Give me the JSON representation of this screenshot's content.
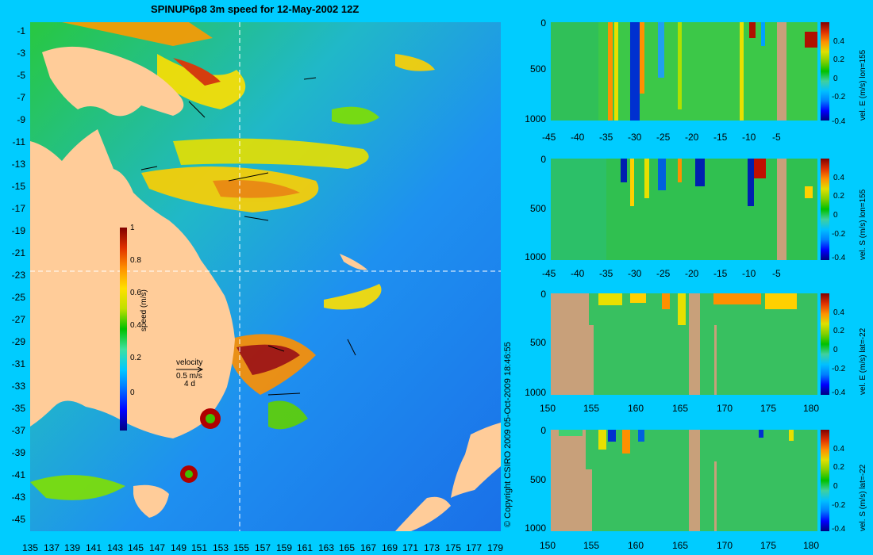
{
  "title": "SPINUP6p8 3m speed for 12-May-2002 12Z",
  "copyright": "© Copyright CSIRO 2009 05-Oct-2009 18:46:55",
  "map": {
    "lat_ticks": [
      "-1",
      "-3",
      "-5",
      "-7",
      "-9",
      "-11",
      "-13",
      "-15",
      "-17",
      "-19",
      "-21",
      "-23",
      "-25",
      "-27",
      "-29",
      "-31",
      "-33",
      "-35",
      "-37",
      "-39",
      "-41",
      "-43",
      "-45"
    ],
    "lon_ticks": [
      "135",
      "137",
      "139",
      "141",
      "143",
      "145",
      "147",
      "149",
      "151",
      "153",
      "155",
      "157",
      "159",
      "161",
      "163",
      "165",
      "167",
      "169",
      "171",
      "173",
      "175",
      "177",
      "179"
    ],
    "colorbar": {
      "title": "speed (m/s)",
      "ticks": [
        "1",
        "0.8",
        "0.6",
        "0.4",
        "0.2",
        "0"
      ]
    },
    "velocity_legend": {
      "title": "velocity",
      "speed": "0.5 m/s",
      "period": "4 d"
    },
    "colors": {
      "land": "#ffcc99",
      "background": "#00ccff"
    }
  },
  "panels": [
    {
      "x_ticks": [
        "-45",
        "-40",
        "-35",
        "-30",
        "-25",
        "-20",
        "-15",
        "-10",
        "-5"
      ],
      "y_ticks": [
        "0",
        "500",
        "1000"
      ],
      "colorbar_ticks": [
        "0.4",
        "0.2",
        "0",
        "-0.2",
        "-0.4"
      ],
      "colorbar_title": "vel. E (m/s) lon=155"
    },
    {
      "x_ticks": [
        "-45",
        "-40",
        "-35",
        "-30",
        "-25",
        "-20",
        "-15",
        "-10",
        "-5"
      ],
      "y_ticks": [
        "0",
        "500",
        "1000"
      ],
      "colorbar_ticks": [
        "0.4",
        "0.2",
        "0",
        "-0.2",
        "-0.4"
      ],
      "colorbar_title": "vel. S (m/s) lon=155"
    },
    {
      "x_ticks": [
        "150",
        "155",
        "160",
        "165",
        "170",
        "175",
        "180"
      ],
      "y_ticks": [
        "0",
        "500",
        "1000"
      ],
      "colorbar_ticks": [
        "0.4",
        "0.2",
        "0",
        "-0.2",
        "-0.4"
      ],
      "colorbar_title": "vel. E (m/s) lat=-22"
    },
    {
      "x_ticks": [
        "150",
        "155",
        "160",
        "165",
        "170",
        "175",
        "180"
      ],
      "y_ticks": [
        "0",
        "500",
        "1000"
      ],
      "colorbar_ticks": [
        "0.4",
        "0.2",
        "0",
        "-0.2",
        "-0.4"
      ],
      "colorbar_title": "vel. S (m/s) lat=-22"
    }
  ]
}
